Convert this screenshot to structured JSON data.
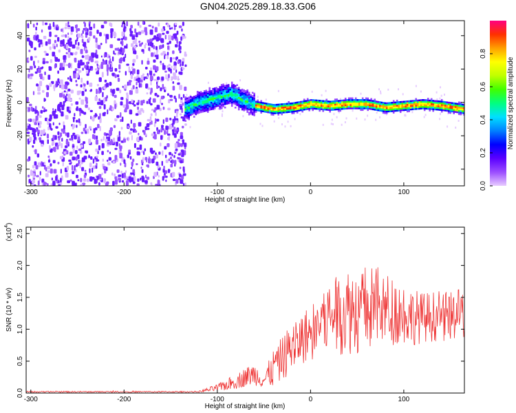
{
  "page_title": "GN04.2025.289.18.33.G06",
  "chart_data": [
    {
      "type": "heatmap",
      "title": "GN04.2025.289.18.33.G06",
      "xlabel": "Height of straight line (km)",
      "ylabel": "Frequency (Hz)",
      "xlim": [
        -305,
        165
      ],
      "ylim": [
        -50,
        49
      ],
      "xticks": [
        -300,
        -200,
        -100,
        0,
        100
      ],
      "yticks": [
        -40,
        -20,
        0,
        20,
        40
      ],
      "grid": false,
      "colorbar": {
        "label": "Normalized spectral amplitude",
        "range": [
          0,
          1
        ],
        "ticks": [
          "0.0",
          "0.2",
          "0.4",
          "0.6",
          "0.8"
        ],
        "colormap": [
          "#e8ccff",
          "#9b4dff",
          "#5a00ff",
          "#0000ff",
          "#0080ff",
          "#00e0ff",
          "#00ff80",
          "#40ff00",
          "#c0ff00",
          "#ffff00",
          "#ffa000",
          "#ff3000",
          "#ff0080"
        ]
      },
      "regions": [
        {
          "label": "noise",
          "x_range": [
            -305,
            -135
          ],
          "freq_range": [
            -50,
            49
          ],
          "amplitude": "low, scattered"
        },
        {
          "label": "signal_band",
          "x_range": [
            -135,
            165
          ],
          "amplitude": "high along center line"
        }
      ],
      "signal_center_line": {
        "x": [
          -135,
          -120,
          -100,
          -85,
          -75,
          -60,
          -40,
          -20,
          0,
          20,
          40,
          60,
          80,
          100,
          120,
          140,
          165
        ],
        "freq": [
          -4,
          0,
          3,
          5,
          2,
          -2,
          -4,
          -3,
          -1,
          -2,
          -1,
          -1,
          -3,
          -2,
          -1,
          -2,
          -4
        ]
      }
    },
    {
      "type": "line",
      "xlabel": "Height of straight line (km)",
      "ylabel": "SNR (10 * v/v)",
      "yscale_note": "(x10",
      "yscale_exp": "4",
      "xlim": [
        -305,
        165
      ],
      "ylim": [
        0,
        2.6
      ],
      "xticks": [
        -300,
        -200,
        -100,
        0,
        100
      ],
      "yticks": [
        "0.0",
        "0.5",
        "1.0",
        "1.5",
        "2.0",
        "2.5"
      ],
      "grid": false,
      "color": "#ee3333",
      "series": [
        {
          "x": [
            -305,
            -250,
            -200,
            -150,
            -120,
            -100,
            -80,
            -70,
            -60,
            -50,
            -40,
            -30,
            -20,
            -10,
            0,
            10,
            20,
            30,
            40,
            50,
            60,
            70,
            80,
            90,
            100,
            110,
            120,
            130,
            140,
            150,
            165
          ],
          "y": [
            0.02,
            0.02,
            0.02,
            0.02,
            0.02,
            0.08,
            0.18,
            0.25,
            0.3,
            0.2,
            0.38,
            0.55,
            0.72,
            0.85,
            0.95,
            1.1,
            1.2,
            1.25,
            1.3,
            1.3,
            1.32,
            1.35,
            1.3,
            1.3,
            1.25,
            1.2,
            1.18,
            1.2,
            1.2,
            1.2,
            1.25
          ],
          "spread": [
            0.01,
            0.01,
            0.01,
            0.01,
            0.01,
            0.06,
            0.12,
            0.15,
            0.18,
            0.12,
            0.3,
            0.35,
            0.4,
            0.4,
            0.45,
            0.55,
            0.6,
            0.65,
            0.7,
            0.7,
            0.7,
            0.65,
            0.6,
            0.55,
            0.5,
            0.45,
            0.4,
            0.4,
            0.4,
            0.38,
            0.4
          ]
        }
      ]
    }
  ]
}
